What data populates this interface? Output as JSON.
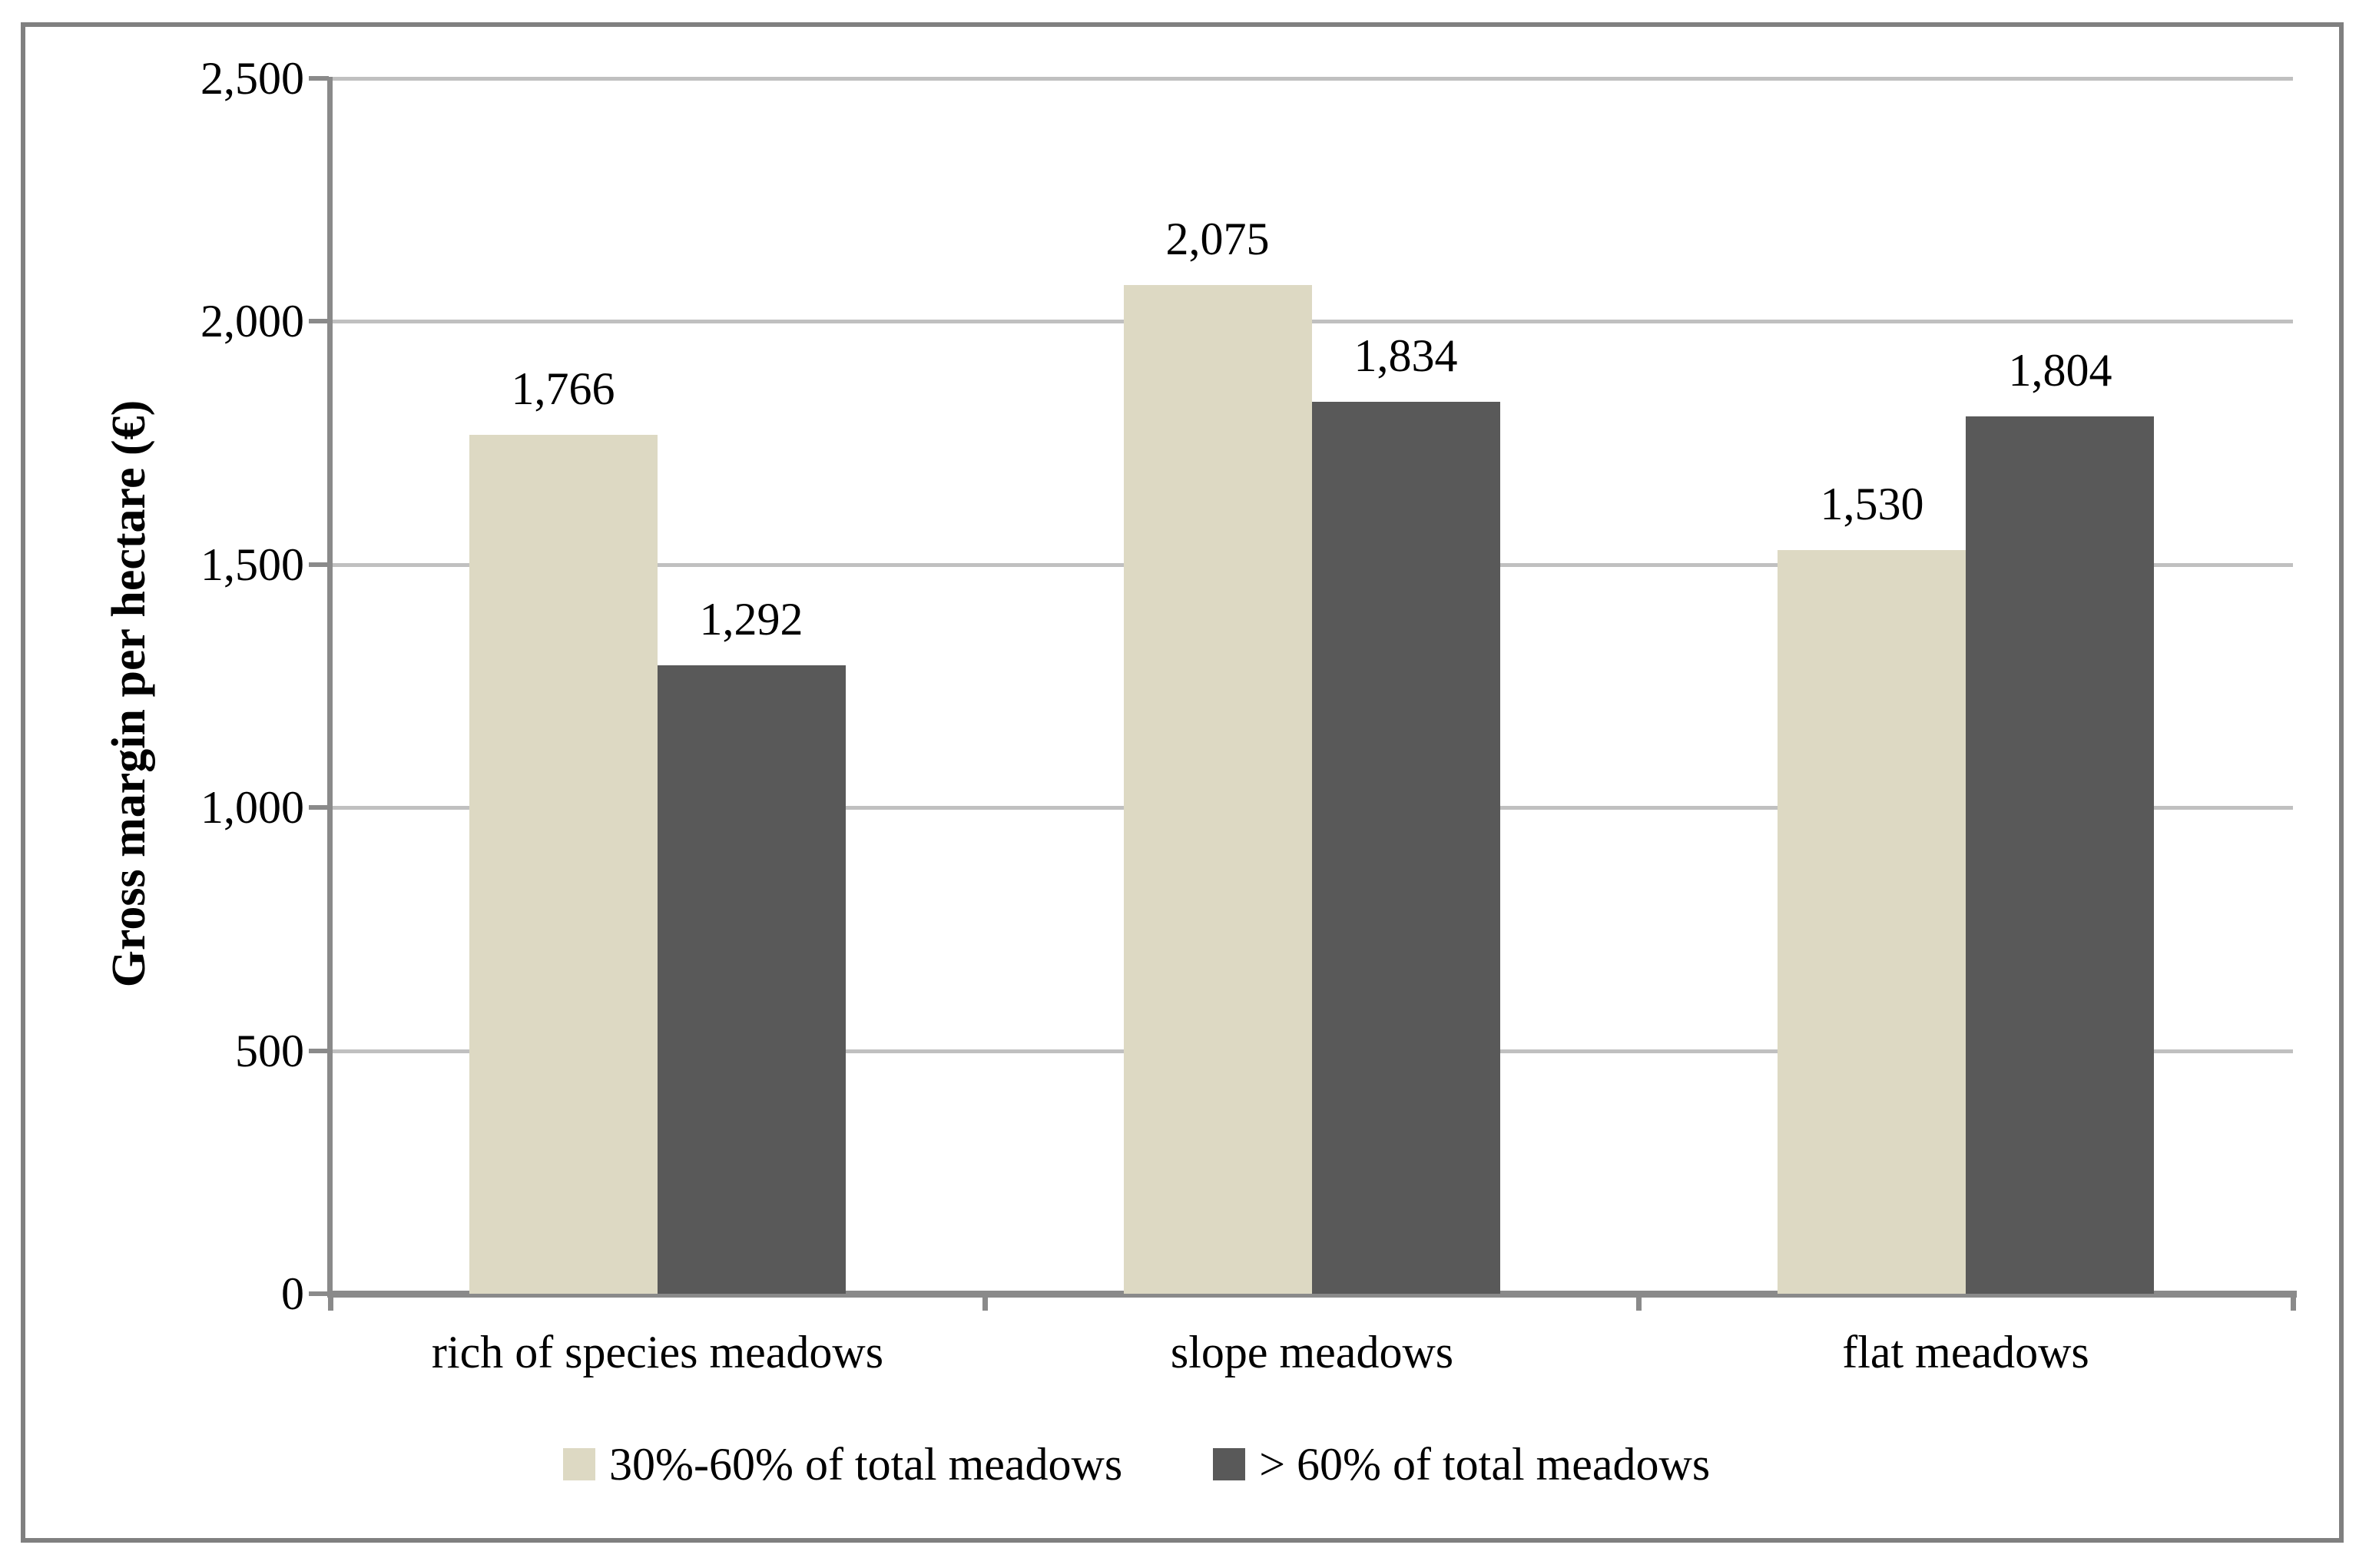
{
  "chart_data": {
    "type": "bar",
    "title": "",
    "xlabel": "",
    "ylabel": "Gross margin per hectare (€)",
    "ylim": [
      0,
      2500
    ],
    "yticks": [
      {
        "value": 0,
        "label": "0"
      },
      {
        "value": 500,
        "label": "500"
      },
      {
        "value": 1000,
        "label": "1,000"
      },
      {
        "value": 1500,
        "label": "1,500"
      },
      {
        "value": 2000,
        "label": "2,000"
      },
      {
        "value": 2500,
        "label": "2,500"
      }
    ],
    "categories": [
      "rich of species meadows",
      "slope meadows",
      "flat meadows"
    ],
    "series": [
      {
        "name": "30%-60% of total meadows",
        "color": "#ddd9c3",
        "values": [
          1766,
          2075,
          1530
        ],
        "value_labels": [
          "1,766",
          "2,075",
          "1,530"
        ]
      },
      {
        "name": "> 60% of total meadows",
        "color": "#595959",
        "values": [
          1292,
          1834,
          1804
        ],
        "value_labels": [
          "1,292",
          "1,834",
          "1,804"
        ]
      }
    ],
    "grid": "horizontal",
    "legend_position": "bottom"
  },
  "colors": {
    "gridline": "#c0c0c0",
    "axis": "#8a8a8a",
    "frame_border": "#808080",
    "text": "#000000",
    "background": "#ffffff"
  }
}
